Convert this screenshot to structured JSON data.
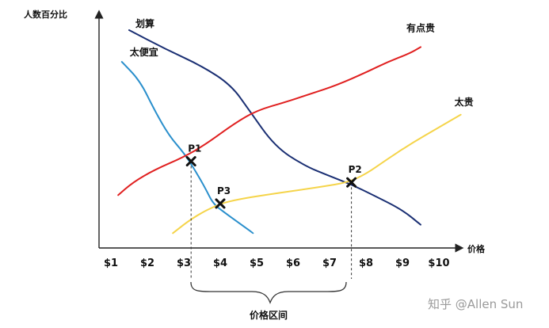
{
  "chart_data": {
    "type": "line",
    "title": "",
    "xlabel": "价格",
    "ylabel": "人数百分比",
    "categories": [
      "$1",
      "$2",
      "$3",
      "$4",
      "$5",
      "$6",
      "$7",
      "$8",
      "$9",
      "$10"
    ],
    "xlim": [
      0.8,
      10.5
    ],
    "ylim": [
      0,
      100
    ],
    "grid": false,
    "series": [
      {
        "name": "太便宜",
        "color": "#2a8fcc",
        "x": [
          1.3,
          1.8,
          2.2,
          2.6,
          3.0,
          3.3,
          3.6,
          3.8,
          4.1,
          4.5,
          4.9
        ],
        "y": [
          85,
          76,
          62,
          50,
          42,
          34,
          25,
          18,
          14,
          9,
          4
        ]
      },
      {
        "name": "划算",
        "color": "#1a2f73",
        "x": [
          1.5,
          2.5,
          3.5,
          4.3,
          4.8,
          5.5,
          6.3,
          7.0,
          7.6,
          8.2,
          9.0,
          9.5
        ],
        "y": [
          100,
          91,
          83,
          74,
          62,
          45,
          36,
          31,
          27,
          22,
          15,
          8
        ]
      },
      {
        "name": "有点贵",
        "color": "#e02020",
        "x": [
          1.2,
          1.6,
          2.2,
          3.0,
          3.6,
          4.4,
          5.0,
          5.8,
          6.5,
          7.2,
          8.0,
          8.6,
          9.2,
          9.5
        ],
        "y": [
          22,
          28,
          34,
          40,
          46,
          56,
          62,
          66,
          70,
          74,
          80,
          85,
          89,
          92
        ]
      },
      {
        "name": "太贵",
        "color": "#f5d44a",
        "x": [
          2.7,
          3.3,
          4.0,
          4.5,
          5.2,
          6.0,
          6.8,
          7.5,
          8.0,
          8.5,
          9.2,
          10.0,
          10.6
        ],
        "y": [
          4,
          12,
          18,
          20,
          22,
          24,
          26,
          28,
          32,
          38,
          46,
          54,
          60
        ]
      }
    ],
    "points": [
      {
        "label": "P1",
        "x": 3.2,
        "y": 38
      },
      {
        "label": "P2",
        "x": 7.6,
        "y": 28
      },
      {
        "label": "P3",
        "x": 4.0,
        "y": 18
      }
    ],
    "annotations": [
      {
        "text": "价格区间",
        "from": "P1",
        "to": "P2"
      }
    ]
  },
  "watermark": "知乎 @Allen Sun"
}
